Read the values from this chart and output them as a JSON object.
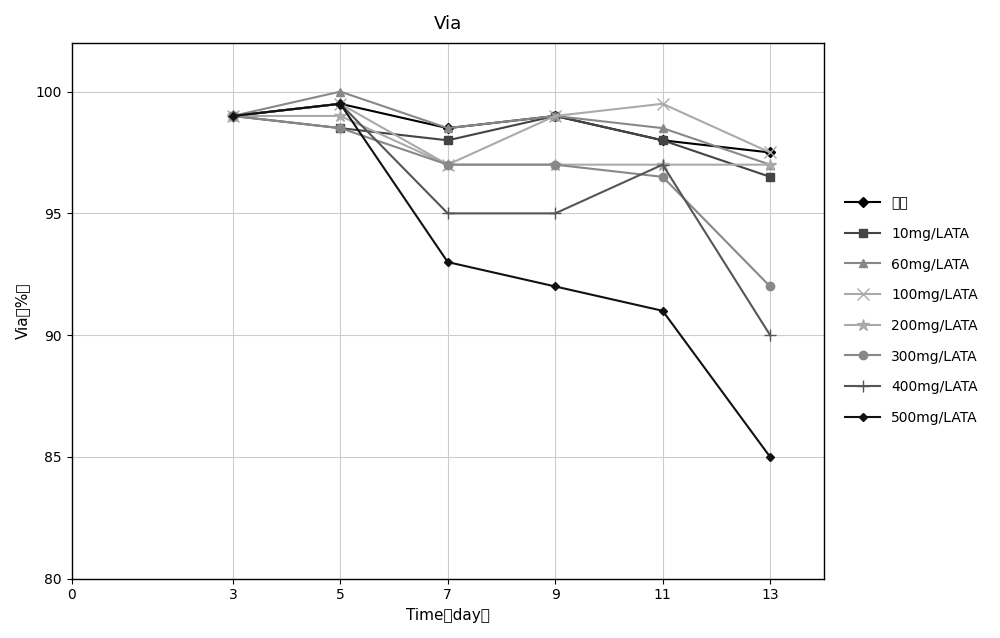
{
  "title": "Via",
  "xlabel": "Time（day）",
  "ylabel": "Via（%）",
  "x": [
    3,
    5,
    7,
    9,
    11,
    13
  ],
  "series": [
    {
      "label": "对照",
      "color": "#000000",
      "marker": "D",
      "markersize": 5,
      "linewidth": 1.5,
      "linestyle": "-",
      "values": [
        99.0,
        99.5,
        98.5,
        99.0,
        98.0,
        97.5
      ]
    },
    {
      "label": "10mg/LATA",
      "color": "#444444",
      "marker": "s",
      "markersize": 6,
      "linewidth": 1.5,
      "linestyle": "-",
      "values": [
        99.0,
        98.5,
        98.0,
        99.0,
        98.0,
        96.5
      ]
    },
    {
      "label": "60mg/LATA",
      "color": "#888888",
      "marker": "^",
      "markersize": 6,
      "linewidth": 1.5,
      "linestyle": "-",
      "values": [
        99.0,
        100.0,
        98.5,
        99.0,
        98.5,
        97.0
      ]
    },
    {
      "label": "100mg/LATA",
      "color": "#aaaaaa",
      "marker": "x",
      "markersize": 8,
      "linewidth": 1.5,
      "linestyle": "-",
      "values": [
        99.0,
        99.5,
        97.0,
        99.0,
        99.5,
        97.5
      ]
    },
    {
      "label": "200mg/LATA",
      "color": "#aaaaaa",
      "marker": "*",
      "markersize": 9,
      "linewidth": 1.5,
      "linestyle": "-",
      "values": [
        99.0,
        99.0,
        97.0,
        97.0,
        97.0,
        97.0
      ]
    },
    {
      "label": "300mg/LATA",
      "color": "#888888",
      "marker": "o",
      "markersize": 6,
      "linewidth": 1.5,
      "linestyle": "-",
      "values": [
        99.0,
        98.5,
        97.0,
        97.0,
        96.5,
        92.0
      ]
    },
    {
      "label": "400mg/LATA",
      "color": "#555555",
      "marker": "+",
      "markersize": 9,
      "linewidth": 1.5,
      "linestyle": "-",
      "values": [
        99.0,
        99.5,
        95.0,
        95.0,
        97.0,
        90.0
      ]
    },
    {
      "label": "500mg/LATA",
      "color": "#111111",
      "marker": "D",
      "markersize": 4,
      "linewidth": 1.5,
      "linestyle": "-",
      "values": [
        99.0,
        99.5,
        93.0,
        92.0,
        91.0,
        85.0
      ]
    }
  ],
  "ylim": [
    80,
    102
  ],
  "xlim": [
    0,
    14
  ],
  "xticks": [
    0,
    3,
    5,
    7,
    9,
    11,
    13
  ],
  "yticks": [
    80,
    85,
    90,
    95,
    100
  ],
  "grid": true,
  "background_color": "#ffffff",
  "title_fontsize": 13,
  "axis_label_fontsize": 11,
  "tick_fontsize": 10,
  "legend_fontsize": 10
}
